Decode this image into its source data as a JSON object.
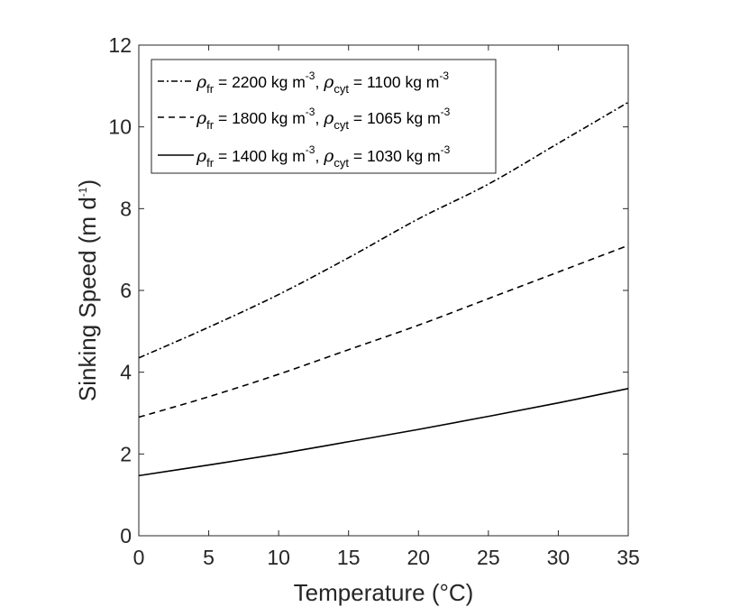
{
  "chart_data": {
    "type": "line",
    "title": "",
    "xlabel": "Temperature (°C)",
    "ylabel": "Sinking Speed (m d",
    "ylabel_sup": "-1",
    "ylabel_close": ")",
    "xlim": [
      0,
      35
    ],
    "ylim": [
      0,
      12
    ],
    "x_ticks": [
      0,
      5,
      10,
      15,
      20,
      25,
      30,
      35
    ],
    "y_ticks": [
      0,
      2,
      4,
      6,
      8,
      10,
      12
    ],
    "grid": false,
    "legend_position": "top-left",
    "x": [
      0,
      5,
      10,
      15,
      20,
      25,
      30,
      35
    ],
    "series": [
      {
        "name": "ρfr = 2200 kg m-3, ρcyt = 1100 kg m-3",
        "style": "dash-dot",
        "values": [
          4.35,
          5.1,
          5.9,
          6.8,
          7.75,
          8.6,
          9.6,
          10.6
        ],
        "legend": {
          "rho1": "ρ",
          "sub1": "fr",
          "mid1": " = 2200 kg m",
          "sup1": "-3",
          "sep": ", ",
          "rho2": "ρ",
          "sub2": "cyt",
          "mid2": " = 1100 kg m",
          "sup2": "-3"
        }
      },
      {
        "name": "ρfr = 1800 kg m-3, ρcyt = 1065 kg m-3",
        "style": "dashed",
        "values": [
          2.9,
          3.4,
          3.95,
          4.55,
          5.15,
          5.8,
          6.45,
          7.1
        ],
        "legend": {
          "rho1": "ρ",
          "sub1": "fr",
          "mid1": " = 1800 kg m",
          "sup1": "-3",
          "sep": ", ",
          "rho2": "ρ",
          "sub2": "cyt",
          "mid2": " = 1065 kg m",
          "sup2": "-3"
        }
      },
      {
        "name": "ρfr = 1400 kg m-3, ρcyt = 1030 kg m-3",
        "style": "solid",
        "values": [
          1.47,
          1.73,
          2.0,
          2.3,
          2.6,
          2.92,
          3.25,
          3.6
        ],
        "legend": {
          "rho1": "ρ",
          "sub1": "fr",
          "mid1": " = 1400 kg m",
          "sup1": "-3",
          "sep": ", ",
          "rho2": "ρ",
          "sub2": "cyt",
          "mid2": " = 1030 kg m",
          "sup2": "-3"
        }
      }
    ]
  }
}
